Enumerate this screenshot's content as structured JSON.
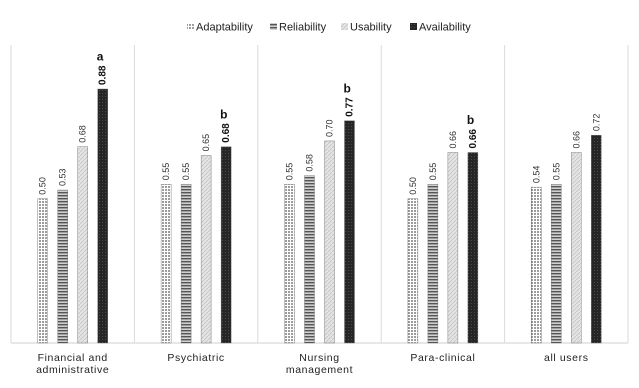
{
  "chart_data": {
    "type": "bar",
    "title": "",
    "xlabel": "",
    "ylabel": "",
    "ylim": [
      0,
      1.0
    ],
    "grid": false,
    "legend_position": "top",
    "categories": [
      [
        "Financial and",
        "administrative"
      ],
      [
        "Psychiatric"
      ],
      [
        "Nursing",
        "management"
      ],
      [
        "Para-clinical"
      ],
      [
        "all users"
      ]
    ],
    "series": [
      {
        "name": "Adaptability",
        "pattern": "dots",
        "color": "#b8b8b8",
        "values": [
          0.5,
          0.55,
          0.55,
          0.5,
          0.54
        ]
      },
      {
        "name": "Reliability",
        "pattern": "hstripes",
        "color": "#8a8a8a",
        "values": [
          0.53,
          0.55,
          0.58,
          0.55,
          0.55
        ]
      },
      {
        "name": "Usability",
        "pattern": "light",
        "color": "#dcdcdc",
        "values": [
          0.68,
          0.65,
          0.7,
          0.66,
          0.66
        ]
      },
      {
        "name": "Availability",
        "pattern": "dark",
        "color": "#2b2b2b",
        "values": [
          0.88,
          0.68,
          0.77,
          0.66,
          0.72
        ]
      }
    ],
    "value_labels": [
      [
        "0.50",
        "0.53",
        "0.68",
        "0.88"
      ],
      [
        "0.55",
        "0.55",
        "0.65",
        "0.68"
      ],
      [
        "0.55",
        "0.58",
        "0.70",
        "0.77"
      ],
      [
        "0.50",
        "0.55",
        "0.66",
        "0.66"
      ],
      [
        "0.54",
        "0.55",
        "0.66",
        "0.72"
      ]
    ],
    "annotations": [
      "a",
      "b",
      "b",
      "b",
      ""
    ]
  }
}
